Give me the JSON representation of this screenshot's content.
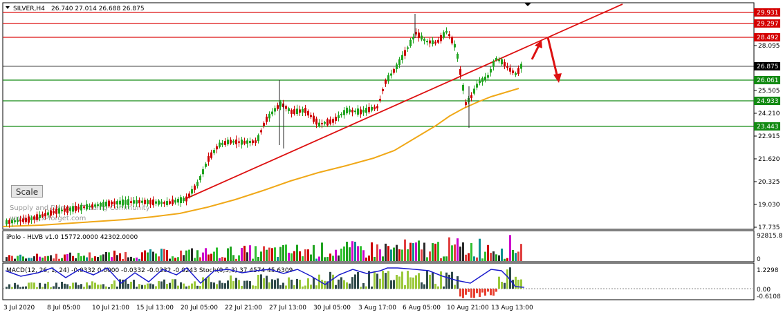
{
  "main": {
    "symbol": "SILVER,H4",
    "ohlc": "26.740 27.014 26.688 26.875",
    "scale_button": "Scale",
    "watermark_line1": "Supply and Demand Trading Community",
    "watermark_line2": "www.forex-forget.com",
    "price_ticks": [
      "28.095",
      "25.505",
      "24.210",
      "22.915",
      "21.620",
      "20.325",
      "19.030",
      "17.735"
    ],
    "level_labels": [
      {
        "text": "29.931",
        "color": "#d40000"
      },
      {
        "text": "29.297",
        "color": "#d40000"
      },
      {
        "text": "28.492",
        "color": "#d40000"
      },
      {
        "text": "26.875",
        "color": "#000000"
      },
      {
        "text": "26.061",
        "color": "#138a13"
      },
      {
        "text": "24.933",
        "color": "#138a13"
      },
      {
        "text": "23.443",
        "color": "#138a13"
      }
    ]
  },
  "volume": {
    "title": "iPolo - HLVB v1.0 15772.0000 42302.0000",
    "ticks": [
      "92815.8",
      "0"
    ]
  },
  "macd": {
    "title": "MACD(12, 26, 1, 24) -0.0332 0.0000 -0.0332 -0.0332 -0.0243 Stoch(9,5,3) 37.4574 45.6309",
    "ticks": [
      "1.2298",
      "0.00",
      "-0.6108"
    ]
  },
  "time_labels": [
    "3 Jul 2020",
    "8 Jul 05:00",
    "10 Jul 21:00",
    "15 Jul 13:00",
    "20 Jul 05:00",
    "22 Jul 21:00",
    "27 Jul 13:00",
    "30 Jul 05:00",
    "3 Aug 17:00",
    "6 Aug 05:00",
    "10 Aug 21:00",
    "13 Aug 13:00"
  ],
  "colors": {
    "up_candle": "#1fa31f",
    "down_candle": "#cc0000",
    "ma": "#f0a818",
    "trendline": "#dd1111",
    "resistance": "#dd1111",
    "support": "#138a13",
    "macd_line": "#1a1acc"
  }
}
